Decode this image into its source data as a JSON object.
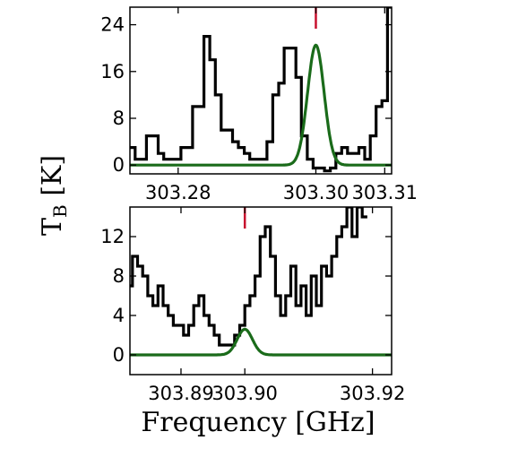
{
  "chart_data": [
    {
      "type": "line",
      "panel": "top",
      "xlim": [
        303.273,
        303.311
      ],
      "ylim": [
        -1.5,
        27
      ],
      "xticks": [
        {
          "value": 303.28,
          "label": "303.28"
        },
        {
          "value": 303.3,
          "label": "303.30"
        },
        {
          "value": 303.31,
          "label": "303.31"
        }
      ],
      "yticks": [
        {
          "value": 0,
          "label": "0"
        },
        {
          "value": 8,
          "label": "8"
        },
        {
          "value": 16,
          "label": "16"
        },
        {
          "value": 24,
          "label": "24"
        }
      ],
      "line_marker": 303.3,
      "marker_color": "#c8102e",
      "series": [
        {
          "style": "steps-mid",
          "color": "#000000",
          "x": [
            303.2733,
            303.2742,
            303.275,
            303.2758,
            303.2767,
            303.2775,
            303.2783,
            303.2792,
            303.28,
            303.2808,
            303.2817,
            303.2825,
            303.2833,
            303.2842,
            303.285,
            303.2858,
            303.2867,
            303.2875,
            303.2883,
            303.2892,
            303.29,
            303.2908,
            303.2917,
            303.2925,
            303.2933,
            303.2942,
            303.295,
            303.2958,
            303.2967,
            303.2975,
            303.2983,
            303.2992,
            303.3,
            303.3008,
            303.3017,
            303.3025,
            303.3033,
            303.3042,
            303.305,
            303.3058,
            303.3067,
            303.3075,
            303.3083,
            303.3092,
            303.31,
            303.3108
          ],
          "y": [
            3,
            1,
            1,
            5,
            5,
            2,
            1,
            1,
            1,
            3,
            3,
            10,
            10,
            22,
            18,
            12,
            6,
            6,
            4,
            3,
            2,
            1,
            1,
            1,
            4,
            12,
            14,
            20,
            20,
            15,
            5,
            1,
            -0.5,
            -0.5,
            -1,
            -0.5,
            2,
            3,
            2,
            2,
            3,
            1,
            5,
            10,
            11,
            27
          ]
        },
        {
          "style": "gaussian-fit",
          "color": "#1a6b1a",
          "center": 303.3,
          "amplitude": 20.5,
          "sigma": 0.0012
        }
      ]
    },
    {
      "type": "line",
      "panel": "bottom",
      "xlim": [
        303.882,
        303.923
      ],
      "ylim": [
        -2,
        15
      ],
      "xticks": [
        {
          "value": 303.89,
          "label": "303.89"
        },
        {
          "value": 303.9,
          "label": "303.90"
        },
        {
          "value": 303.92,
          "label": "303.92"
        }
      ],
      "yticks": [
        {
          "value": 0,
          "label": "0"
        },
        {
          "value": 4,
          "label": "4"
        },
        {
          "value": 8,
          "label": "8"
        },
        {
          "value": 12,
          "label": "12"
        }
      ],
      "line_marker": 303.9,
      "marker_color": "#c8102e",
      "series": [
        {
          "style": "steps-mid",
          "color": "#000000",
          "x": [
            303.882,
            303.8828,
            303.8836,
            303.8844,
            303.8852,
            303.886,
            303.8868,
            303.8876,
            303.8884,
            303.8892,
            303.89,
            303.8908,
            303.8916,
            303.8924,
            303.8932,
            303.894,
            303.8948,
            303.8956,
            303.8964,
            303.8972,
            303.898,
            303.8988,
            303.8996,
            303.9004,
            303.9012,
            303.902,
            303.9028,
            303.9036,
            303.9044,
            303.9052,
            303.906,
            303.9068,
            303.9076,
            303.9084,
            303.9092,
            303.91,
            303.9108,
            303.9116,
            303.9124,
            303.9132,
            303.914,
            303.9148,
            303.9156,
            303.9164,
            303.9172,
            303.918,
            303.9188
          ],
          "y": [
            7,
            10,
            9,
            8,
            6,
            5,
            7,
            5,
            4,
            3,
            3,
            2,
            3,
            5,
            6,
            4,
            3,
            2,
            1,
            1,
            1,
            2,
            3,
            5,
            6,
            8,
            12,
            13,
            10,
            6,
            4,
            6,
            9,
            5,
            7,
            4,
            8,
            5,
            9,
            8,
            10,
            12,
            13,
            15,
            12,
            15,
            14
          ]
        },
        {
          "style": "gaussian-fit",
          "color": "#1a6b1a",
          "center": 303.9,
          "amplitude": 2.6,
          "sigma": 0.0012
        }
      ]
    }
  ],
  "labels": {
    "ylabel_main": "T",
    "ylabel_sub": "B",
    "ylabel_unit": " [K]",
    "xlabel": "Frequency [GHz]"
  }
}
